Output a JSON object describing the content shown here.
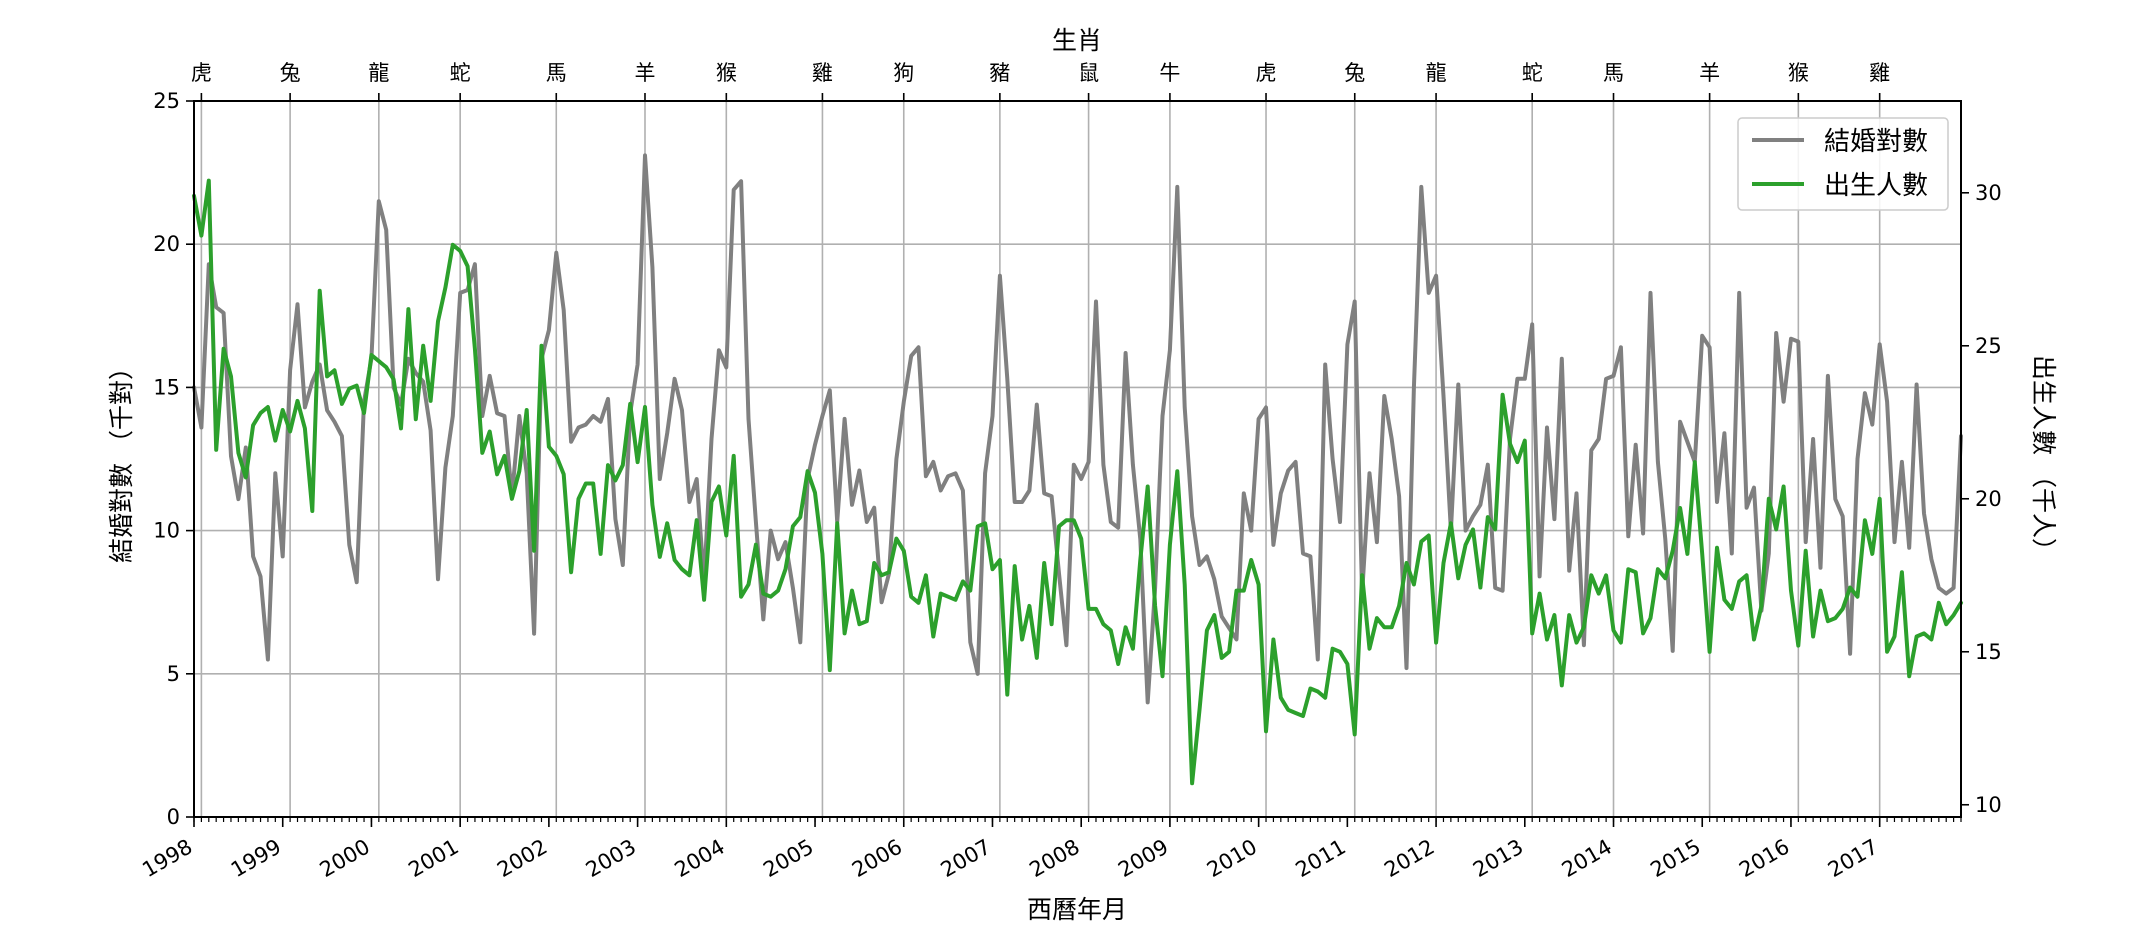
{
  "chart_data": {
    "type": "line",
    "title": "",
    "xlabel": "西曆年月",
    "ylabel": "結婚對數 （千對）",
    "y2label": "出生人數 （千人）",
    "top_axis_label": "生肖",
    "x_range": [
      "1998-01",
      "2017-12"
    ],
    "ylim": [
      0,
      25
    ],
    "y2lim": [
      9.6,
      33
    ],
    "yticks": [
      0,
      5,
      10,
      15,
      20,
      25
    ],
    "y2ticks": [
      10,
      15,
      20,
      25,
      30
    ],
    "grid": true,
    "legend_position": "top-right",
    "year_labels": [
      "1998",
      "1999",
      "2000",
      "2001",
      "2002",
      "2003",
      "2004",
      "2005",
      "2006",
      "2007",
      "2008",
      "2009",
      "2010",
      "2011",
      "2012",
      "2013",
      "2014",
      "2015",
      "2016",
      "2017"
    ],
    "zodiac": [
      {
        "date": "1998-02",
        "label": "虎"
      },
      {
        "date": "1999-02",
        "label": "兔"
      },
      {
        "date": "2000-02",
        "label": "龍"
      },
      {
        "date": "2001-01",
        "label": "蛇"
      },
      {
        "date": "2002-02",
        "label": "馬"
      },
      {
        "date": "2003-02",
        "label": "羊"
      },
      {
        "date": "2004-01",
        "label": "猴"
      },
      {
        "date": "2005-02",
        "label": "雞"
      },
      {
        "date": "2006-01",
        "label": "狗"
      },
      {
        "date": "2007-02",
        "label": "豬"
      },
      {
        "date": "2008-02",
        "label": "鼠"
      },
      {
        "date": "2009-01",
        "label": "牛"
      },
      {
        "date": "2010-02",
        "label": "虎"
      },
      {
        "date": "2011-02",
        "label": "兔"
      },
      {
        "date": "2012-01",
        "label": "龍"
      },
      {
        "date": "2013-02",
        "label": "蛇"
      },
      {
        "date": "2014-01",
        "label": "馬"
      },
      {
        "date": "2015-02",
        "label": "羊"
      },
      {
        "date": "2016-02",
        "label": "猴"
      },
      {
        "date": "2017-01",
        "label": "雞"
      }
    ],
    "series": [
      {
        "name": "結婚對數",
        "axis": "left",
        "color": "#808080",
        "values": [
          15.0,
          13.6,
          19.3,
          17.8,
          17.6,
          12.6,
          11.1,
          12.9,
          9.1,
          8.4,
          5.5,
          12.0,
          9.1,
          15.6,
          17.9,
          14.3,
          15.2,
          15.8,
          14.2,
          13.8,
          13.3,
          9.5,
          8.2,
          14.5,
          16.0,
          21.5,
          20.5,
          15.0,
          14.4,
          16.0,
          15.5,
          15.2,
          13.5,
          8.3,
          12.2,
          14.0,
          18.3,
          18.4,
          19.3,
          14.0,
          15.4,
          14.1,
          14.0,
          11.2,
          14.0,
          12.0,
          6.4,
          16.0,
          17.0,
          19.7,
          17.7,
          13.1,
          13.6,
          13.7,
          14.0,
          13.8,
          14.6,
          10.4,
          8.8,
          14.1,
          15.8,
          23.1,
          19.2,
          11.8,
          13.4,
          15.3,
          14.2,
          11.0,
          11.8,
          8.2,
          13.2,
          16.3,
          15.7,
          21.9,
          22.2,
          13.9,
          10.3,
          6.9,
          10.0,
          9.0,
          9.6,
          8.0,
          6.1,
          11.8,
          13.0,
          14.0,
          14.9,
          10.3,
          13.9,
          10.9,
          12.1,
          10.3,
          10.8,
          7.5,
          8.5,
          12.5,
          14.5,
          16.1,
          16.4,
          11.9,
          12.4,
          11.4,
          11.9,
          12.0,
          11.4,
          6.1,
          5.0,
          12.0,
          14.0,
          18.9,
          15.3,
          11.0,
          11.0,
          11.4,
          14.4,
          11.3,
          11.2,
          8.5,
          6.0,
          12.3,
          11.8,
          12.4,
          18.0,
          12.3,
          10.3,
          10.1,
          16.2,
          12.3,
          9.7,
          4.0,
          8.0,
          14.0,
          16.3,
          22.0,
          14.3,
          10.5,
          8.8,
          9.1,
          8.3,
          7.0,
          6.6,
          6.2,
          11.3,
          10.0,
          13.9,
          14.3,
          9.5,
          11.3,
          12.1,
          12.4,
          9.2,
          9.1,
          5.5,
          15.8,
          12.5,
          10.3,
          16.5,
          18.0,
          7.8,
          12.0,
          9.6,
          14.7,
          13.2,
          11.2,
          5.2,
          15.0,
          22.0,
          18.3,
          18.9,
          14.7,
          10.0,
          15.1,
          10.0,
          10.5,
          10.9,
          12.3,
          8.0,
          7.9,
          13.2,
          15.3,
          15.3,
          17.2,
          8.4,
          13.6,
          10.4,
          16.0,
          8.6,
          11.3,
          6.0,
          12.8,
          13.2,
          15.3,
          15.4,
          16.4,
          9.8,
          13.0,
          9.9,
          18.3,
          12.4,
          9.7,
          5.8,
          13.8,
          13.1,
          12.4,
          16.8,
          16.4,
          11.0,
          13.4,
          9.2,
          18.3,
          10.8,
          11.5,
          7.2,
          9.2,
          16.9,
          14.5,
          16.7,
          16.6,
          9.6,
          13.2,
          8.7,
          15.4,
          11.1,
          10.5,
          5.7,
          12.5,
          14.8,
          13.7,
          16.5,
          14.5,
          9.6,
          12.4,
          9.4,
          15.1,
          10.6,
          9.0,
          8.0,
          7.8,
          8.0,
          13.3
        ]
      },
      {
        "name": "出生人數",
        "axis": "right",
        "color": "#2ca02c",
        "values": [
          29.9,
          28.6,
          30.4,
          21.6,
          24.9,
          24.0,
          21.5,
          20.7,
          22.4,
          22.8,
          23.0,
          21.9,
          22.9,
          22.2,
          23.2,
          22.3,
          19.6,
          26.8,
          24.0,
          24.2,
          23.1,
          23.6,
          23.7,
          22.8,
          24.7,
          24.5,
          24.3,
          23.9,
          22.3,
          26.2,
          22.6,
          25.0,
          23.2,
          25.8,
          26.9,
          28.3,
          28.1,
          27.6,
          24.9,
          21.5,
          22.2,
          20.8,
          21.4,
          20.0,
          20.9,
          22.9,
          18.3,
          25.0,
          21.7,
          21.4,
          20.8,
          17.6,
          20.0,
          20.5,
          20.5,
          18.2,
          21.1,
          20.6,
          21.1,
          23.1,
          21.2,
          23.0,
          19.8,
          18.1,
          19.2,
          18.0,
          17.7,
          17.5,
          19.3,
          16.7,
          19.9,
          20.4,
          18.8,
          21.4,
          16.8,
          17.2,
          18.5,
          16.9,
          16.8,
          17.0,
          17.7,
          19.1,
          19.4,
          20.9,
          20.2,
          18.2,
          14.4,
          19.2,
          15.6,
          17.0,
          15.9,
          16.0,
          17.9,
          17.5,
          17.6,
          18.7,
          18.3,
          16.8,
          16.6,
          17.5,
          15.5,
          16.9,
          16.8,
          16.7,
          17.3,
          17.0,
          19.1,
          19.2,
          17.7,
          18.0,
          13.6,
          17.8,
          15.4,
          16.5,
          14.8,
          17.9,
          15.9,
          19.1,
          19.3,
          19.3,
          18.7,
          16.4,
          16.4,
          15.9,
          15.7,
          14.6,
          15.8,
          15.1,
          18.0,
          20.4,
          16.5,
          14.2,
          18.5,
          20.9,
          17.2,
          10.7,
          13.1,
          15.7,
          16.2,
          14.8,
          15.0,
          17.0,
          17.0,
          18.0,
          17.2,
          12.4,
          15.4,
          13.5,
          13.1,
          13.0,
          12.9,
          13.8,
          13.7,
          13.5,
          15.1,
          15.0,
          14.6,
          12.3,
          17.5,
          15.1,
          16.1,
          15.8,
          15.8,
          16.5,
          17.9,
          17.2,
          18.6,
          18.8,
          15.3,
          17.9,
          19.2,
          17.4,
          18.5,
          19.0,
          17.1,
          19.4,
          19.0,
          23.4,
          21.8,
          21.2,
          21.9,
          15.6,
          16.9,
          15.4,
          16.2,
          13.9,
          16.2,
          15.3,
          15.8,
          17.5,
          16.9,
          17.5,
          15.7,
          15.3,
          17.7,
          17.6,
          15.6,
          16.1,
          17.7,
          17.4,
          18.3,
          19.7,
          18.2,
          21.2,
          18.2,
          15.0,
          18.4,
          16.7,
          16.4,
          17.3,
          17.5,
          15.4,
          16.5,
          20.0,
          19.0,
          20.4,
          17.0,
          15.2,
          18.3,
          15.5,
          17.0,
          16.0,
          16.1,
          16.4,
          17.1,
          16.8,
          19.3,
          18.2,
          20.0,
          15.0,
          15.5,
          17.6,
          14.2,
          15.5,
          15.6,
          15.4,
          16.6,
          15.9,
          16.2,
          16.6
        ]
      }
    ]
  }
}
